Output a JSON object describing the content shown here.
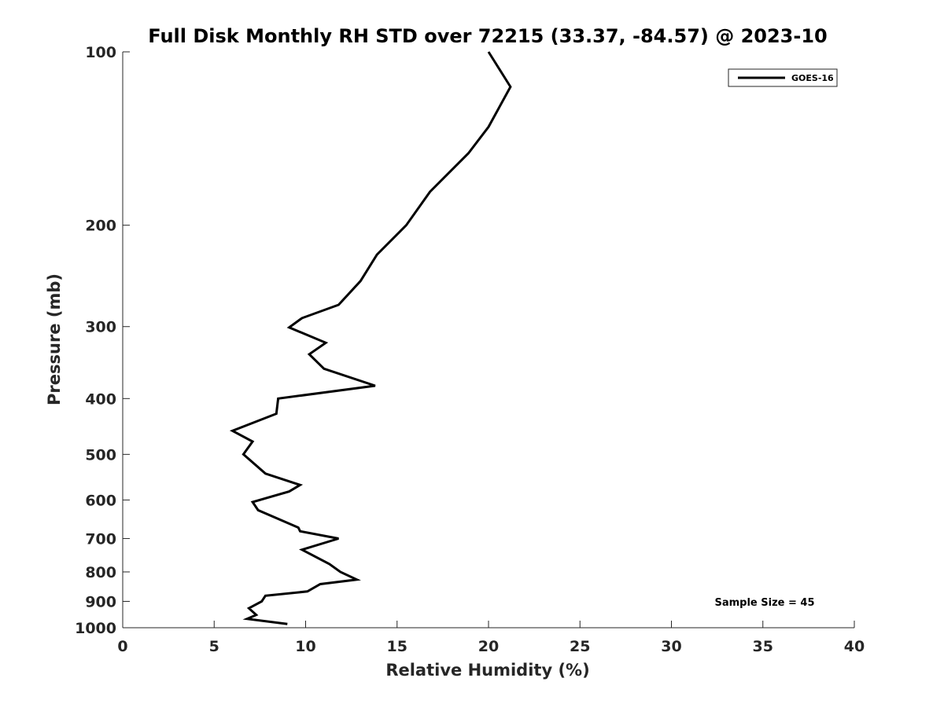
{
  "chart_data": {
    "type": "line",
    "title": "Full Disk Monthly RH STD over 72215 (33.37, -84.57) @ 2023-10",
    "xlabel": "Relative Humidity (%)",
    "ylabel": "Pressure (mb)",
    "xlim": [
      0,
      40
    ],
    "ylim": [
      100,
      1000
    ],
    "y_scale": "log",
    "y_reversed": true,
    "x_ticks": [
      0,
      5,
      10,
      15,
      20,
      25,
      30,
      35,
      40
    ],
    "y_ticks": [
      100,
      200,
      300,
      400,
      500,
      600,
      700,
      800,
      900,
      1000
    ],
    "grid": false,
    "legend_position": "top-right",
    "annotation": "Sample Size = 45",
    "series": [
      {
        "name": "GOES-16",
        "color": "#000000",
        "points": [
          {
            "x": 20.0,
            "y": 100
          },
          {
            "x": 21.2,
            "y": 115
          },
          {
            "x": 20.0,
            "y": 135
          },
          {
            "x": 18.9,
            "y": 150
          },
          {
            "x": 16.8,
            "y": 175
          },
          {
            "x": 15.5,
            "y": 200
          },
          {
            "x": 13.9,
            "y": 225
          },
          {
            "x": 13.0,
            "y": 250
          },
          {
            "x": 11.8,
            "y": 275
          },
          {
            "x": 9.8,
            "y": 290
          },
          {
            "x": 9.1,
            "y": 301
          },
          {
            "x": 11.1,
            "y": 320
          },
          {
            "x": 10.2,
            "y": 335
          },
          {
            "x": 11.0,
            "y": 355
          },
          {
            "x": 13.8,
            "y": 380
          },
          {
            "x": 8.5,
            "y": 400
          },
          {
            "x": 8.4,
            "y": 425
          },
          {
            "x": 6.0,
            "y": 455
          },
          {
            "x": 7.1,
            "y": 475
          },
          {
            "x": 6.6,
            "y": 500
          },
          {
            "x": 7.8,
            "y": 540
          },
          {
            "x": 9.7,
            "y": 565
          },
          {
            "x": 9.1,
            "y": 580
          },
          {
            "x": 7.1,
            "y": 605
          },
          {
            "x": 7.4,
            "y": 625
          },
          {
            "x": 9.6,
            "y": 670
          },
          {
            "x": 9.7,
            "y": 680
          },
          {
            "x": 11.8,
            "y": 700
          },
          {
            "x": 9.8,
            "y": 732
          },
          {
            "x": 11.3,
            "y": 775
          },
          {
            "x": 11.9,
            "y": 800
          },
          {
            "x": 12.8,
            "y": 825
          },
          {
            "x": 10.8,
            "y": 840
          },
          {
            "x": 10.1,
            "y": 865
          },
          {
            "x": 7.8,
            "y": 880
          },
          {
            "x": 7.6,
            "y": 900
          },
          {
            "x": 6.9,
            "y": 925
          },
          {
            "x": 7.3,
            "y": 950
          },
          {
            "x": 6.8,
            "y": 965
          },
          {
            "x": 9.0,
            "y": 985
          }
        ]
      }
    ]
  }
}
